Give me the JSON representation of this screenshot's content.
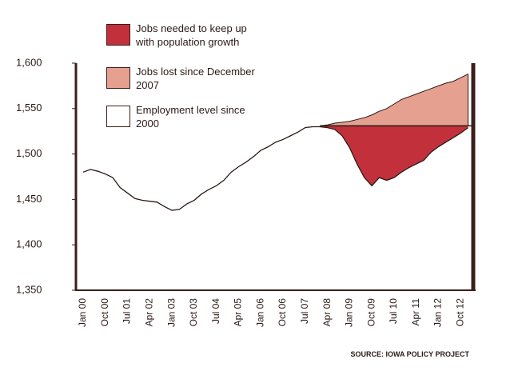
{
  "chart_data": {
    "type": "area-line",
    "source": "SOURCE: IOWA POLICY PROJECT",
    "categories": [
      "Jan 00",
      null,
      null,
      "Oct 00",
      null,
      null,
      "Jul 01",
      null,
      null,
      "Apr 02",
      null,
      null,
      "Jan 03",
      null,
      null,
      "Oct 03",
      null,
      null,
      "Jul 04",
      null,
      null,
      "Apr 05",
      null,
      null,
      "Jan 06",
      null,
      null,
      "Oct 06",
      null,
      null,
      "Jul 07",
      null,
      null,
      "Apr 08",
      null,
      null,
      "Jan 09",
      null,
      null,
      "Oct 09",
      null,
      null,
      "Jul 10",
      null,
      null,
      "Apr 11",
      null,
      null,
      "Jan 12",
      null,
      null,
      "Oct 12",
      null
    ],
    "baseline": 1531,
    "series": [
      {
        "name": "Jobs needed to keep up with population growth",
        "color": "#c2313b"
      },
      {
        "name": "Jobs lost since December 2007",
        "color": "#e5a090",
        "values": [
          null,
          null,
          null,
          null,
          null,
          null,
          null,
          null,
          null,
          null,
          null,
          null,
          null,
          null,
          null,
          null,
          null,
          null,
          null,
          null,
          null,
          null,
          null,
          null,
          null,
          null,
          null,
          null,
          null,
          null,
          null,
          null,
          1531,
          1532,
          1534,
          1535,
          1536,
          1538,
          1540,
          1543,
          1547,
          1550,
          1555,
          1560,
          1563,
          1566,
          1569,
          1572,
          1575,
          1578,
          1580,
          1584,
          1588
        ]
      },
      {
        "name": "Employment level since 2000",
        "color": "#ffffff",
        "values": [
          1480,
          1483,
          1481,
          1478,
          1474,
          1463,
          1457,
          1451,
          1449,
          1448,
          1447,
          1442,
          1438,
          1439,
          1445,
          1449,
          1456,
          1461,
          1465,
          1471,
          1480,
          1486,
          1491,
          1497,
          1504,
          1508,
          1513,
          1516,
          1520,
          1524,
          1529,
          1530,
          1530,
          1529,
          1527,
          1520,
          1507,
          1489,
          1474,
          1465,
          1474,
          1471,
          1474,
          1480,
          1485,
          1489,
          1493,
          1502,
          1508,
          1513,
          1518,
          1523,
          1529
        ]
      }
    ],
    "ylim": [
      1350,
      1600
    ],
    "yticks": [
      {
        "value": 1350,
        "label": "1,350"
      },
      {
        "value": 1400,
        "label": "1,400"
      },
      {
        "value": 1450,
        "label": "1,450"
      },
      {
        "value": 1500,
        "label": "1,500"
      },
      {
        "value": 1550,
        "label": "1,550"
      },
      {
        "value": 1600,
        "label": "1,600"
      }
    ],
    "axis_color": "#3a1f1a",
    "line_color": "#2a1a16"
  }
}
